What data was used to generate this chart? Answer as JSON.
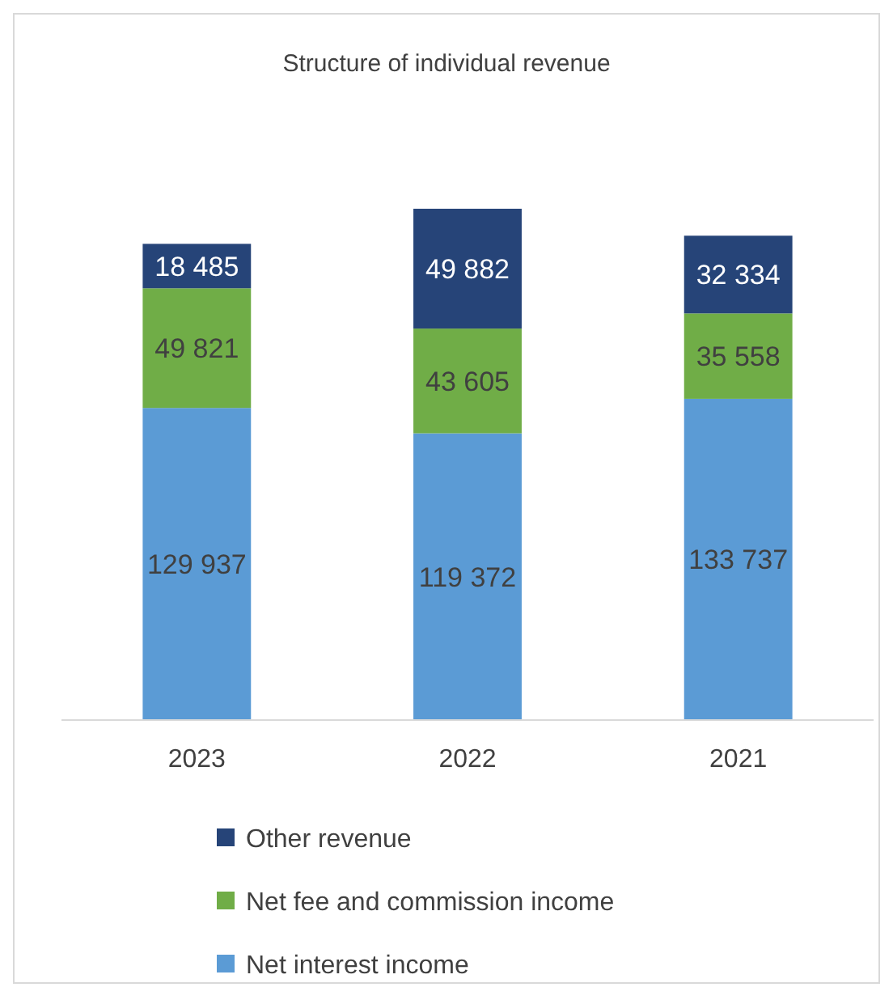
{
  "chart_data": {
    "type": "bar",
    "title": "Structure of individual revenue",
    "categories": [
      "2023",
      "2022",
      "2021"
    ],
    "stacked": true,
    "legend": "bottom",
    "data_labels": true,
    "series": [
      {
        "name": "Net interest income",
        "color": "#5b9bd5",
        "values": [
          129937,
          119372,
          133737
        ],
        "value_labels": [
          "129 937",
          "119 372",
          "133 737"
        ]
      },
      {
        "name": "Net fee and commission income",
        "color": "#70ad47",
        "values": [
          49821,
          43605,
          35558
        ],
        "value_labels": [
          "49 821",
          "43 605",
          "35 558"
        ]
      },
      {
        "name": "Other revenue",
        "color": "#264478",
        "values": [
          18485,
          49882,
          32334
        ],
        "value_labels": [
          "18 485",
          "49 882",
          "32 334"
        ]
      }
    ]
  }
}
